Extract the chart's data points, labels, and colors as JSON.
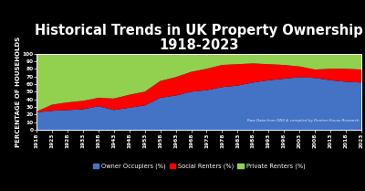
{
  "title": "Historical Trends in UK Property Ownership\n1918-2023",
  "ylabel": "PERCENTAGE OF HOUSEHOLDS",
  "background_color": "#000000",
  "years": [
    1918,
    1923,
    1928,
    1933,
    1938,
    1943,
    1948,
    1953,
    1958,
    1963,
    1968,
    1973,
    1978,
    1983,
    1988,
    1993,
    1998,
    2003,
    2008,
    2013,
    2018,
    2023
  ],
  "owner_occupiers": [
    23,
    25,
    26,
    27,
    31,
    26,
    29,
    32,
    42,
    45,
    50,
    52,
    56,
    58,
    62,
    65,
    67,
    69,
    68,
    65,
    63,
    62
  ],
  "social_renters": [
    1,
    8,
    10,
    11,
    11,
    15,
    17,
    18,
    22,
    24,
    26,
    28,
    29,
    28,
    25,
    21,
    18,
    14,
    11,
    15,
    17,
    17
  ],
  "private_renters": [
    76,
    67,
    64,
    62,
    58,
    59,
    54,
    50,
    36,
    31,
    24,
    20,
    15,
    14,
    13,
    14,
    15,
    17,
    21,
    20,
    20,
    21
  ],
  "colors": {
    "owner_occupiers": "#4472c4",
    "social_renters": "#ff0000",
    "private_renters": "#92d050"
  },
  "annotation": "Raw Data from ONS & compiled by Denton House Research",
  "legend_labels": [
    "Owner Occupiers (%)",
    "Social Renters (%)",
    "Private Renters (%)"
  ],
  "ylim": [
    0,
    100
  ],
  "yticks": [
    0,
    10,
    20,
    30,
    40,
    50,
    60,
    70,
    80,
    90,
    100
  ],
  "title_fontsize": 10.5,
  "axis_label_fontsize": 5.0,
  "tick_fontsize": 4.2,
  "legend_fontsize": 4.8,
  "annotation_fontsize": 3.0
}
